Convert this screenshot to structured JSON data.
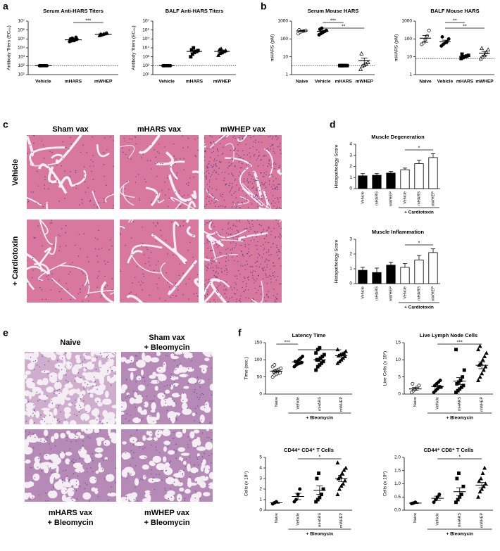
{
  "panels": [
    "a",
    "b",
    "c",
    "d",
    "e",
    "f"
  ],
  "histology_c": {
    "columns": [
      "Sham vax",
      "mHARS vax",
      "mWHEP vax"
    ],
    "rows": [
      "Vehicle",
      "+ Cardiotoxin"
    ]
  },
  "histology_e": {
    "labels": [
      [
        "Naive"
      ],
      [
        "Sham vax",
        "+ Bleomycin"
      ],
      [
        "mHARS vax",
        "+ Bleomycin"
      ],
      [
        "mWHEP vax",
        "+ Bleomycin"
      ]
    ]
  },
  "chart_data": [
    {
      "type": "dotplot",
      "title": "Serum Anti-HARS Titers",
      "ylabel": "Antibody Titers (EC₅₀)",
      "log": true,
      "categories": [
        "Vehicle",
        "mHARS",
        "mWHEP"
      ],
      "markers": [
        "circle",
        "circle",
        "triangle"
      ],
      "points": [
        [
          100,
          100,
          100,
          100,
          100,
          100
        ],
        [
          50000,
          60000,
          70000,
          80000,
          90000,
          100000,
          120000,
          65000,
          150000
        ],
        [
          250000,
          300000,
          350000,
          400000,
          450000,
          320000
        ]
      ],
      "means": [
        100,
        80000,
        340000
      ],
      "sems": [
        0,
        10000,
        40000
      ],
      "threshold": 100,
      "ylim": [
        10,
        10000000
      ],
      "yticks": [
        {
          "value": 10,
          "label": "10¹"
        },
        {
          "value": 100,
          "label": "10²"
        },
        {
          "value": 1000,
          "label": "10³"
        },
        {
          "value": 10000,
          "label": "10⁴"
        },
        {
          "value": 100000,
          "label": "10⁵"
        },
        {
          "value": 1000000,
          "label": "10⁶"
        },
        {
          "value": 10000000,
          "label": "10⁷"
        }
      ],
      "significance": [
        {
          "from": "mHARS",
          "to": "mWHEP",
          "label": "***"
        }
      ]
    },
    {
      "type": "dotplot",
      "title": "BALF Anti-HARS Titers",
      "ylabel": "Antibody Titers (EC₅₀)",
      "log": true,
      "categories": [
        "Vehicle",
        "mHARS",
        "mWHEP"
      ],
      "markers": [
        "circle",
        "square",
        "triangle"
      ],
      "points": [
        [
          100,
          100,
          100,
          100,
          100,
          100
        ],
        [
          1000,
          2000,
          3000,
          4000,
          5000,
          6000,
          10000
        ],
        [
          1500,
          2500,
          3000,
          4000,
          5000,
          6000,
          8000
        ]
      ],
      "means": [
        100,
        4000,
        4000
      ],
      "sems": [
        0,
        1200,
        900
      ],
      "threshold": 100,
      "ylim": [
        10,
        10000000
      ],
      "yticks": [
        {
          "value": 10,
          "label": "10¹"
        },
        {
          "value": 100,
          "label": "10²"
        },
        {
          "value": 1000,
          "label": "10³"
        },
        {
          "value": 10000,
          "label": "10⁴"
        },
        {
          "value": 100000,
          "label": "10⁵"
        },
        {
          "value": 1000000,
          "label": "10⁶"
        },
        {
          "value": 10000000,
          "label": "10⁷"
        }
      ]
    },
    {
      "type": "dotplot",
      "title": "Serum Mouse HARS",
      "ylabel": "mHARS (pM)",
      "log": true,
      "categories": [
        "Naive",
        "Vehicle",
        "mHARS",
        "mWHEP"
      ],
      "markers": [
        "circle-open",
        "circle",
        "square",
        "triangle-open"
      ],
      "points": [
        [
          200,
          240,
          260,
          280,
          300,
          320
        ],
        [
          170,
          200,
          230,
          260,
          300,
          350,
          400
        ],
        [
          3.2,
          3.2,
          3.2,
          3.2,
          3.2,
          3.2,
          3.2
        ],
        [
          2,
          3,
          3.5,
          4,
          5,
          15
        ]
      ],
      "means": [
        280,
        270,
        3.2,
        6
      ],
      "sems": [
        20,
        30,
        0,
        2.5
      ],
      "threshold": 3.2,
      "ylim": [
        1,
        1000
      ],
      "yticks": [
        1,
        10,
        100,
        1000
      ],
      "significance": [
        {
          "from": "Vehicle",
          "to": "mHARS",
          "label": "***"
        },
        {
          "from": "Vehicle",
          "to": "mWHEP",
          "label": "**"
        }
      ]
    },
    {
      "type": "dotplot",
      "title": "BALF Mouse HARS",
      "ylabel": "mHARS (pM)",
      "log": true,
      "categories": [
        "Naive",
        "Vehicle",
        "mHARS",
        "mWHEP"
      ],
      "markers": [
        "circle-open",
        "circle",
        "square",
        "triangle-open"
      ],
      "points": [
        [
          50,
          60,
          90,
          150,
          300
        ],
        [
          40,
          50,
          60,
          70,
          100,
          130
        ],
        [
          8,
          9,
          10,
          11,
          12,
          14
        ],
        [
          8,
          10,
          12,
          18,
          25,
          30
        ]
      ],
      "means": [
        110,
        70,
        10.5,
        16
      ],
      "sems": [
        45,
        15,
        1.5,
        4
      ],
      "threshold": 8,
      "ylim": [
        1,
        1000
      ],
      "yticks": [
        1,
        10,
        100,
        1000
      ],
      "significance": [
        {
          "from": "Vehicle",
          "to": "mHARS",
          "label": "**"
        },
        {
          "from": "Vehicle",
          "to": "mWHEP",
          "label": "**"
        }
      ]
    },
    {
      "type": "bar",
      "title": "Muscle Degeneration",
      "ylabel": "Histopathology Score",
      "categories": [
        "Vehicle",
        "mHARS",
        "mWHEP",
        "Vehicle",
        "mHARS",
        "mWHEP"
      ],
      "values": [
        1.15,
        1.2,
        1.4,
        1.7,
        2.25,
        2.8
      ],
      "errors": [
        0.2,
        0.15,
        0.15,
        0.15,
        0.3,
        0.35
      ],
      "colors": [
        "#000000",
        "#000000",
        "#000000",
        "#ffffff",
        "#ffffff",
        "#ffffff"
      ],
      "ylim": [
        0,
        4
      ],
      "yticks": [
        0,
        1,
        2,
        3,
        4
      ],
      "significance": [
        {
          "from": "Vehicle",
          "to": "mWHEP",
          "label": "*",
          "after": 3
        }
      ],
      "group": {
        "label": "+ Cardiotoxin",
        "from": 3,
        "to": 5
      }
    },
    {
      "type": "bar",
      "title": "Muscle Inflammation",
      "ylabel": "Histopathology Score",
      "categories": [
        "Vehicle",
        "mHARS",
        "mWHEP",
        "Vehicle",
        "mHARS",
        "mWHEP"
      ],
      "values": [
        0.9,
        0.75,
        1.25,
        1.1,
        1.6,
        2.1
      ],
      "errors": [
        0.2,
        0.3,
        0.2,
        0.25,
        0.3,
        0.25
      ],
      "colors": [
        "#000000",
        "#000000",
        "#000000",
        "#ffffff",
        "#ffffff",
        "#ffffff"
      ],
      "ylim": [
        0,
        3
      ],
      "yticks": [
        0,
        1,
        2,
        3
      ],
      "significance": [
        {
          "from": "Vehicle",
          "to": "mWHEP",
          "label": "*",
          "after": 3
        }
      ],
      "group": {
        "label": "+ Cardiotoxin",
        "from": 3,
        "to": 5
      }
    },
    {
      "type": "dotplot",
      "title": "Latency Time",
      "ylabel": "Time (sec.)",
      "categories": [
        "Naive",
        "Vehicle",
        "mHARS",
        "mWHEP"
      ],
      "markers": [
        "circle-open",
        "circle",
        "square",
        "triangle"
      ],
      "points": [
        [
          50,
          55,
          58,
          60,
          62,
          65,
          68,
          70,
          72,
          75,
          80,
          85
        ],
        [
          80,
          85,
          88,
          90,
          92,
          95,
          95,
          100,
          105,
          110
        ],
        [
          70,
          80,
          85,
          90,
          95,
          100,
          100,
          105,
          110,
          115,
          120,
          130,
          135
        ],
        [
          90,
          95,
          100,
          105,
          110,
          112,
          115,
          118,
          120,
          125,
          130
        ]
      ],
      "means": [
        67,
        94,
        100,
        112
      ],
      "sems": [
        3,
        3,
        5,
        4
      ],
      "ylim": [
        0,
        150
      ],
      "yticks": [
        0,
        50,
        100,
        150
      ],
      "significance": [
        {
          "from": "Naive",
          "to": "Vehicle",
          "label": "***"
        },
        {
          "from": "Vehicle",
          "to": "mWHEP",
          "label": "*"
        }
      ],
      "group": {
        "label": "+ Bleomycin",
        "from": 1,
        "to": 3
      }
    },
    {
      "type": "dotplot",
      "title": "Live Lymph Node Cells",
      "ylabel": "Live Cells (x 10⁶)",
      "categories": [
        "Naive",
        "Vehicle",
        "mHARS",
        "mWHEP"
      ],
      "markers": [
        "circle-open",
        "circle",
        "square",
        "triangle"
      ],
      "points": [
        [
          0.5,
          1,
          1.5,
          2,
          2.5,
          3
        ],
        [
          0.5,
          1,
          1.5,
          2,
          2,
          2.5,
          3,
          3.5,
          4
        ],
        [
          0.5,
          1,
          1.5,
          2,
          2.5,
          3,
          3.5,
          4,
          5,
          7,
          13
        ],
        [
          4,
          5,
          6,
          7,
          8,
          8.5,
          9,
          10,
          11,
          12,
          13,
          14
        ]
      ],
      "means": [
        1.5,
        2.2,
        3.8,
        8.4
      ],
      "sems": [
        0.4,
        0.4,
        1,
        1
      ],
      "ylim": [
        0,
        15
      ],
      "yticks": [
        0,
        5,
        10,
        15
      ],
      "significance": [
        {
          "from": "Vehicle",
          "to": "mWHEP",
          "label": "***"
        }
      ],
      "group": {
        "label": "+ Bleomycin",
        "from": 1,
        "to": 3
      }
    },
    {
      "type": "dotplot",
      "title": "CD44⁺ CD4⁺ T Cells",
      "ylabel": "Cells (x 10⁵)",
      "categories": [
        "Naive",
        "Vehicle",
        "mHARS",
        "mWHEP"
      ],
      "markers": [
        "circle",
        "circle",
        "square",
        "triangle"
      ],
      "points": [
        [
          0.6,
          0.7,
          0.8
        ],
        [
          0.8,
          1,
          1.5,
          2
        ],
        [
          0.8,
          1,
          1.2,
          1.5,
          2,
          3,
          3.5
        ],
        [
          1.5,
          2,
          2.3,
          2.5,
          2.8,
          3,
          3.2,
          3.5,
          3.8,
          4,
          4.5
        ]
      ],
      "means": [
        0.7,
        1.3,
        1.9,
        3
      ],
      "sems": [
        0.05,
        0.3,
        0.4,
        0.3
      ],
      "ylim": [
        0,
        5
      ],
      "yticks": [
        0,
        1,
        2,
        3,
        4,
        5
      ],
      "significance": [
        {
          "from": "Vehicle",
          "to": "mWHEP",
          "label": "*"
        }
      ],
      "group": {
        "label": "+ Bleomycin",
        "from": 1,
        "to": 3
      }
    },
    {
      "type": "dotplot",
      "title": "CD44⁺ CD8⁺ T Cells",
      "ylabel": "Cells (x 10⁶)",
      "categories": [
        "Naive",
        "Vehicle",
        "mHARS",
        "mWHEP"
      ],
      "markers": [
        "circle",
        "circle",
        "square",
        "triangle"
      ],
      "points": [
        [
          0.25,
          0.27,
          0.3
        ],
        [
          0.3,
          0.4,
          0.5,
          0.6
        ],
        [
          0.3,
          0.4,
          0.5,
          0.6,
          0.9,
          1.2,
          1.4
        ],
        [
          0.5,
          0.7,
          0.8,
          0.9,
          1.0,
          1.1,
          1.2,
          1.4,
          1.6
        ]
      ],
      "means": [
        0.27,
        0.45,
        0.7,
        0.95
      ],
      "sems": [
        0.02,
        0.08,
        0.15,
        0.1
      ],
      "ylim": [
        0,
        2
      ],
      "yticks": [
        {
          "value": 0,
          "label": "0.0"
        },
        {
          "value": 0.5,
          "label": "0.5"
        },
        {
          "value": 1,
          "label": "1.0"
        },
        {
          "value": 1.5,
          "label": "1.5"
        },
        {
          "value": 2,
          "label": "2.0"
        }
      ],
      "significance": [
        {
          "from": "Vehicle",
          "to": "mWHEP",
          "label": "*"
        }
      ],
      "group": {
        "label": "+ Bleomycin",
        "from": 1,
        "to": 3
      }
    }
  ]
}
